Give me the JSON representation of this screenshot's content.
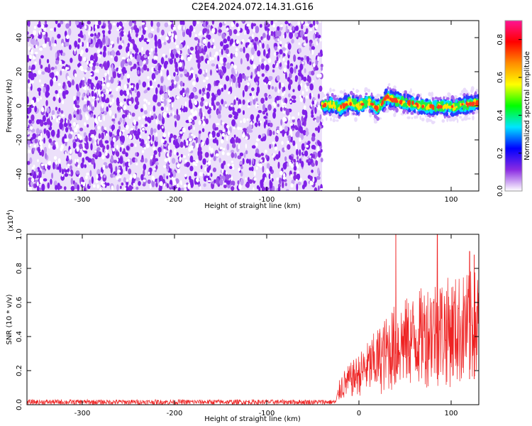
{
  "title": "C2E4.2024.072.14.31.G16",
  "chart_data": [
    {
      "type": "heatmap",
      "xlabel": "Height of straight line (km)",
      "ylabel": "Frequency (Hz)",
      "xlim": [
        -360,
        130
      ],
      "ylim": [
        -50,
        50
      ],
      "xticks": [
        -300,
        -200,
        -100,
        0,
        100
      ],
      "yticks": [
        -40,
        -20,
        0,
        20,
        40
      ],
      "noise_region_x": [
        -360,
        -40
      ],
      "signal_region_x": [
        -40,
        130
      ],
      "signal_center_frequency": [
        {
          "x": -40,
          "y": 0
        },
        {
          "x": -30,
          "y": 1
        },
        {
          "x": -20,
          "y": -1
        },
        {
          "x": -10,
          "y": 2
        },
        {
          "x": 0,
          "y": 0
        },
        {
          "x": 10,
          "y": 3
        },
        {
          "x": 20,
          "y": -2
        },
        {
          "x": 30,
          "y": 5
        },
        {
          "x": 40,
          "y": 3
        },
        {
          "x": 50,
          "y": 2
        },
        {
          "x": 60,
          "y": 1
        },
        {
          "x": 70,
          "y": 0
        },
        {
          "x": 80,
          "y": -1
        },
        {
          "x": 90,
          "y": 0
        },
        {
          "x": 100,
          "y": -1
        },
        {
          "x": 110,
          "y": 0
        },
        {
          "x": 120,
          "y": 1
        },
        {
          "x": 130,
          "y": 2
        }
      ],
      "colorbar": {
        "label": "Normalized spectral amplitude",
        "range": [
          0.0,
          0.9
        ],
        "ticks": [
          "0.0",
          "0.2",
          "0.4",
          "0.6",
          "0.8"
        ],
        "colormap": [
          "#ffffff",
          "#8a2be2",
          "#0000ff",
          "#00e5ff",
          "#00ff00",
          "#ffff00",
          "#ff8c00",
          "#ff0000",
          "#ff1493"
        ]
      }
    },
    {
      "type": "line",
      "xlabel": "Height of straight line (km)",
      "ylabel": "SNR (10 * v/v)",
      "scale_label": "(x10",
      "scale_exponent": "4",
      "scale_close": ")",
      "xlim": [
        -360,
        130
      ],
      "ylim": [
        0.0,
        1.0
      ],
      "xticks": [
        -300,
        -200,
        -100,
        0,
        100
      ],
      "yticks": [
        "0.0",
        "0.2",
        "0.4",
        "0.6",
        "0.8",
        "1.0"
      ],
      "series_color": "#ee2222",
      "envelope": [
        {
          "x": -360,
          "low": 0.0,
          "high": 0.03
        },
        {
          "x": -25,
          "low": 0.0,
          "high": 0.03
        },
        {
          "x": -20,
          "low": 0.02,
          "high": 0.18
        },
        {
          "x": 0,
          "low": 0.05,
          "high": 0.3
        },
        {
          "x": 20,
          "low": 0.05,
          "high": 0.45
        },
        {
          "x": 40,
          "low": 0.08,
          "high": 0.6
        },
        {
          "x": 60,
          "low": 0.1,
          "high": 0.65
        },
        {
          "x": 80,
          "low": 0.1,
          "high": 0.75
        },
        {
          "x": 100,
          "low": 0.1,
          "high": 0.75
        },
        {
          "x": 130,
          "low": 0.1,
          "high": 0.8
        }
      ],
      "peaks": [
        {
          "x": 40,
          "y": 1.0
        },
        {
          "x": 85,
          "y": 1.0
        },
        {
          "x": 120,
          "y": 0.9
        },
        {
          "x": 125,
          "y": 0.88
        }
      ]
    }
  ]
}
